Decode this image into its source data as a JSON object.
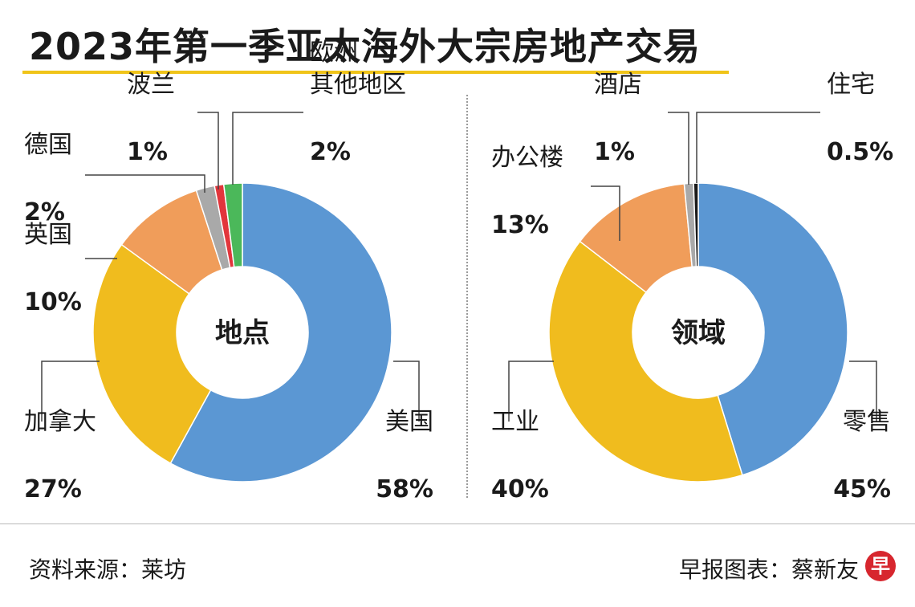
{
  "title": "2023年第一季亚太海外大宗房地产交易",
  "footer": {
    "source": "资料来源：莱坊",
    "credit": "早报图表：蔡新友",
    "logo_text": "早"
  },
  "chart_data": [
    {
      "type": "pie",
      "donut": true,
      "center_label": "地点",
      "slices": [
        {
          "label": "美国",
          "value": 58,
          "value_text": "58%",
          "color": "#5b97d3"
        },
        {
          "label": "加拿大",
          "value": 27,
          "value_text": "27%",
          "color": "#f0bc1e"
        },
        {
          "label": "英国",
          "value": 10,
          "value_text": "10%",
          "color": "#f09d5a"
        },
        {
          "label": "德国",
          "value": 2,
          "value_text": "2%",
          "color": "#a9a9a9"
        },
        {
          "label": "波兰",
          "value": 1,
          "value_text": "1%",
          "color": "#e2363c"
        },
        {
          "label": "欧洲其他地区",
          "label_lines": [
            "欧洲",
            "其他地区"
          ],
          "value": 2,
          "value_text": "2%",
          "color": "#4bb85a"
        }
      ]
    },
    {
      "type": "pie",
      "donut": true,
      "center_label": "领域",
      "slices": [
        {
          "label": "零售",
          "value": 45,
          "value_text": "45%",
          "color": "#5b97d3"
        },
        {
          "label": "工业",
          "value": 40,
          "value_text": "40%",
          "color": "#f0bc1e"
        },
        {
          "label": "办公楼",
          "value": 13,
          "value_text": "13%",
          "color": "#f09d5a"
        },
        {
          "label": "酒店",
          "value": 1,
          "value_text": "1%",
          "color": "#a9a9a9"
        },
        {
          "label": "住宅",
          "value": 0.5,
          "value_text": "0.5%",
          "color": "#1a1a1a"
        }
      ]
    }
  ]
}
